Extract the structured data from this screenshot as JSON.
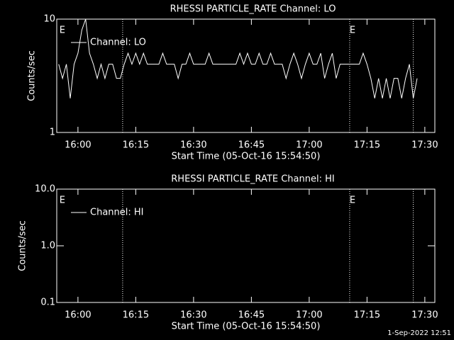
{
  "chart_data": [
    {
      "type": "line",
      "title": "RHESSI PARTICLE_RATE Channel: LO",
      "x_label": "Start Time (05-Oct-16 15:54:50)",
      "y_label": "Counts/sec",
      "log_y": true,
      "xlim": [
        954.5,
        1052.6
      ],
      "ylim": [
        1,
        10
      ],
      "xticks": [
        {
          "value": 960,
          "label": "16:00"
        },
        {
          "value": 975,
          "label": "16:15"
        },
        {
          "value": 990,
          "label": "16:30"
        },
        {
          "value": 1005,
          "label": "16:45"
        },
        {
          "value": 1020,
          "label": "17:00"
        },
        {
          "value": 1035,
          "label": "17:15"
        },
        {
          "value": 1050,
          "label": "17:30"
        }
      ],
      "yticks": [
        1,
        10
      ],
      "vlines": [
        971.6,
        1030.5,
        1047
      ],
      "annotations": [
        {
          "x": 955.2,
          "text": "E"
        },
        {
          "x": 1030.5,
          "text": "E"
        }
      ],
      "x": [
        955,
        956,
        957,
        958,
        959,
        960,
        961,
        962,
        963,
        964,
        965,
        966,
        967,
        968,
        969,
        970,
        971,
        972,
        973,
        974,
        975,
        976,
        977,
        978,
        979,
        980,
        981,
        982,
        983,
        984,
        985,
        986,
        987,
        988,
        989,
        990,
        991,
        992,
        993,
        994,
        995,
        996,
        997,
        998,
        999,
        1000,
        1001,
        1002,
        1003,
        1004,
        1005,
        1006,
        1007,
        1008,
        1009,
        1010,
        1011,
        1012,
        1013,
        1014,
        1015,
        1016,
        1017,
        1018,
        1019,
        1020,
        1021,
        1022,
        1023,
        1024,
        1025,
        1026,
        1027,
        1028,
        1029,
        1030,
        1031,
        1032,
        1033,
        1034,
        1035,
        1036,
        1037,
        1038,
        1039,
        1040,
        1041,
        1042,
        1043,
        1044,
        1045,
        1046,
        1047,
        1048
      ],
      "series": [
        {
          "name": "Channel: LO",
          "color": "#ffffff",
          "values": [
            4,
            3,
            4,
            2,
            4,
            5,
            8,
            10,
            5,
            4,
            3,
            4,
            3,
            4,
            4,
            3,
            3,
            4,
            5,
            4,
            5,
            4,
            5,
            4,
            4,
            4,
            4,
            5,
            4,
            4,
            4,
            3,
            4,
            4,
            5,
            4,
            4,
            4,
            4,
            5,
            4,
            4,
            4,
            4,
            4,
            4,
            4,
            5,
            4,
            5,
            4,
            4,
            5,
            4,
            4,
            5,
            4,
            4,
            4,
            3,
            4,
            5,
            4,
            3,
            4,
            5,
            4,
            4,
            5,
            3,
            4,
            5,
            3,
            4,
            4,
            4,
            4,
            4,
            4,
            5,
            4,
            3,
            2,
            3,
            2,
            3,
            2,
            3,
            3,
            2,
            3,
            4,
            2,
            3
          ]
        }
      ]
    },
    {
      "type": "line",
      "title": "RHESSI PARTICLE_RATE Channel: HI",
      "x_label": "Start Time (05-Oct-16 15:54:50)",
      "y_label": "Counts/sec",
      "log_y": true,
      "xlim": [
        954.5,
        1052.6
      ],
      "ylim": [
        0.1,
        10
      ],
      "xticks": [
        {
          "value": 960,
          "label": "16:00"
        },
        {
          "value": 975,
          "label": "16:15"
        },
        {
          "value": 990,
          "label": "16:30"
        },
        {
          "value": 1005,
          "label": "16:45"
        },
        {
          "value": 1020,
          "label": "17:00"
        },
        {
          "value": 1035,
          "label": "17:15"
        },
        {
          "value": 1050,
          "label": "17:30"
        }
      ],
      "yticks": [
        0.1,
        {
          "value": 1,
          "label": "1.0"
        },
        {
          "value": 10,
          "label": "10.0"
        }
      ],
      "vlines": [
        971.6,
        1030.5,
        1047
      ],
      "annotations": [
        {
          "x": 955.2,
          "text": "E"
        },
        {
          "x": 1030.5,
          "text": "E"
        }
      ],
      "x": [],
      "series": [
        {
          "name": "Channel: HI",
          "color": "#ffffff",
          "values": []
        }
      ]
    }
  ],
  "footer": "1-Sep-2022 12:51"
}
